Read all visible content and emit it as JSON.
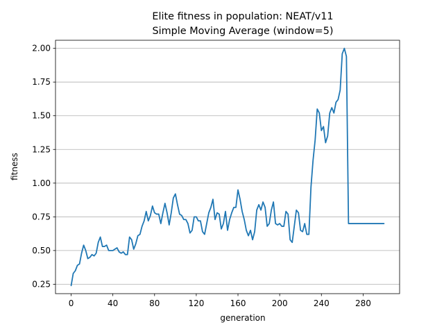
{
  "chart_data": {
    "type": "line",
    "title": "Elite fitness in population: NEAT/v11",
    "subtitle": "Simple Moving Average (window=5)",
    "xlabel": "generation",
    "ylabel": "fitness",
    "xlim": [
      -15,
      315
    ],
    "ylim": [
      0.18,
      2.06
    ],
    "xticks": [
      0,
      40,
      80,
      120,
      160,
      200,
      240,
      280
    ],
    "yticks": [
      0.25,
      0.5,
      0.75,
      1.0,
      1.25,
      1.5,
      1.75,
      2.0
    ],
    "ytick_labels": [
      "0.25",
      "0.50",
      "0.75",
      "1.00",
      "1.25",
      "1.50",
      "1.75",
      "2.00"
    ],
    "grid": "horizontal",
    "legend": "none",
    "color": "#1f77b4",
    "series": [
      {
        "x": [
          0,
          2,
          4,
          6,
          8,
          10,
          12,
          14,
          16,
          18,
          20,
          22,
          24,
          26,
          28,
          30,
          32,
          34,
          36,
          38,
          40,
          42,
          44,
          46,
          48,
          50,
          52,
          54,
          56,
          58,
          60,
          62,
          64,
          66,
          68,
          70,
          72,
          74,
          76,
          78,
          80,
          82,
          84,
          86,
          88,
          90,
          92,
          94,
          96,
          98,
          100,
          102,
          104,
          106,
          108,
          110,
          112,
          114,
          116,
          118,
          120,
          122,
          124,
          126,
          128,
          130,
          132,
          134,
          136,
          138,
          140,
          142,
          144,
          146,
          148,
          150,
          152,
          154,
          156,
          158,
          160,
          162,
          164,
          166,
          168,
          170,
          172,
          174,
          176,
          178,
          180,
          182,
          184,
          186,
          188,
          190,
          192,
          194,
          196,
          198,
          200,
          202,
          204,
          206,
          208,
          210,
          212,
          214,
          216,
          218,
          220,
          222,
          224,
          226,
          228,
          230,
          232,
          234,
          236,
          238,
          240,
          242,
          244,
          246,
          248,
          250,
          252,
          254,
          256,
          258,
          260,
          262,
          264,
          266,
          268,
          270,
          272,
          274,
          276,
          278,
          280,
          282,
          284,
          286,
          288,
          290,
          292,
          294,
          296,
          298,
          300
        ],
        "values": [
          0.24,
          0.33,
          0.35,
          0.39,
          0.4,
          0.48,
          0.54,
          0.5,
          0.44,
          0.45,
          0.47,
          0.46,
          0.48,
          0.56,
          0.6,
          0.53,
          0.53,
          0.54,
          0.5,
          0.5,
          0.5,
          0.51,
          0.52,
          0.49,
          0.48,
          0.49,
          0.47,
          0.47,
          0.6,
          0.58,
          0.51,
          0.55,
          0.61,
          0.62,
          0.68,
          0.72,
          0.79,
          0.72,
          0.76,
          0.83,
          0.78,
          0.77,
          0.77,
          0.7,
          0.78,
          0.85,
          0.78,
          0.69,
          0.78,
          0.89,
          0.92,
          0.84,
          0.77,
          0.76,
          0.73,
          0.73,
          0.7,
          0.63,
          0.65,
          0.75,
          0.75,
          0.72,
          0.72,
          0.64,
          0.62,
          0.7,
          0.78,
          0.82,
          0.88,
          0.73,
          0.78,
          0.77,
          0.66,
          0.7,
          0.79,
          0.65,
          0.73,
          0.78,
          0.82,
          0.82,
          0.95,
          0.88,
          0.79,
          0.73,
          0.65,
          0.61,
          0.65,
          0.58,
          0.64,
          0.8,
          0.84,
          0.8,
          0.86,
          0.82,
          0.68,
          0.7,
          0.8,
          0.86,
          0.7,
          0.69,
          0.7,
          0.68,
          0.68,
          0.79,
          0.77,
          0.58,
          0.56,
          0.68,
          0.8,
          0.78,
          0.65,
          0.64,
          0.7,
          0.62,
          0.62,
          0.97,
          1.17,
          1.32,
          1.55,
          1.52,
          1.39,
          1.42,
          1.3,
          1.35,
          1.52,
          1.56,
          1.52,
          1.6,
          1.62,
          1.69,
          1.96,
          2.0,
          1.94,
          0.7,
          0.7,
          0.7,
          0.7,
          0.7,
          0.7,
          0.7,
          0.7,
          0.7,
          0.7,
          0.7,
          0.7,
          0.7,
          0.7,
          0.7,
          0.7,
          0.7,
          0.7
        ]
      }
    ]
  }
}
